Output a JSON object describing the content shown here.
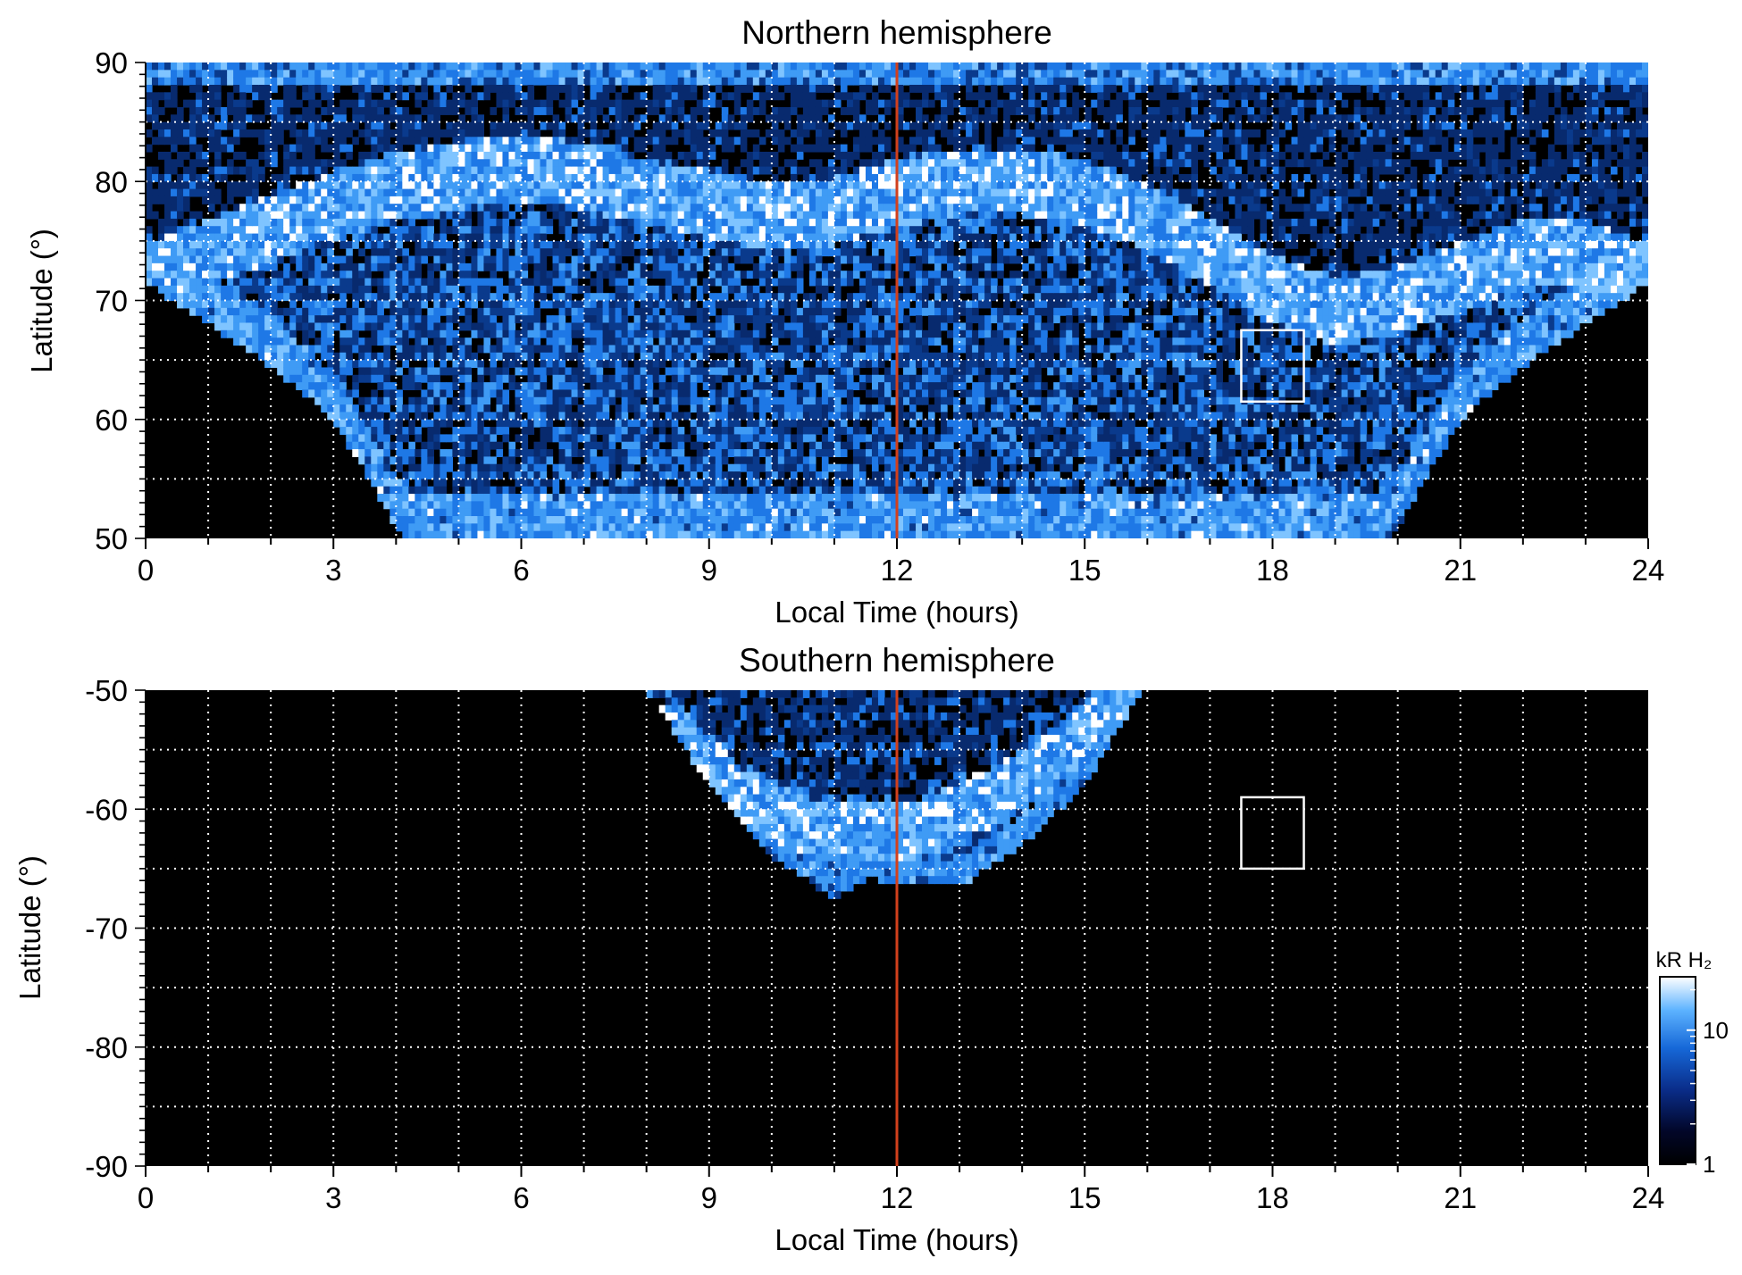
{
  "colors": {
    "background": "#000000",
    "aurora_dim": "#0a3a8c",
    "aurora_mid": "#1e78e6",
    "aurora_bright": "#7fc4ff",
    "aurora_peak": "#ffffff",
    "noon_line": "#d2401c",
    "grid": "#ffffff",
    "box": "#ffffff"
  },
  "chart_data": [
    {
      "type": "heatmap",
      "title": "Northern hemisphere",
      "xlabel": "Local Time (hours)",
      "ylabel": "Latitude (°)",
      "xlim": [
        0,
        24
      ],
      "ylim": [
        50,
        90
      ],
      "x_ticks": [
        "0",
        "3",
        "6",
        "9",
        "12",
        "15",
        "18",
        "21",
        "24"
      ],
      "y_ticks": [
        "50",
        "60",
        "70",
        "80",
        "90"
      ],
      "grid": true,
      "grid_x_step_hours": 1,
      "grid_y_step_deg": 5,
      "noon_line_x": 12,
      "box": {
        "x": [
          17.5,
          18.5
        ],
        "y": [
          61.5,
          67.5
        ]
      },
      "coverage_boundary": [
        [
          0,
          71.5
        ],
        [
          1,
          68
        ],
        [
          2,
          64.5
        ],
        [
          3,
          60
        ],
        [
          4,
          51
        ],
        [
          4.2,
          50
        ],
        [
          19.8,
          50
        ],
        [
          20,
          51
        ],
        [
          21,
          60
        ],
        [
          22,
          64.5
        ],
        [
          23,
          68
        ],
        [
          24,
          71.5
        ]
      ],
      "main_oval": [
        [
          0,
          72
        ],
        [
          1,
          74
        ],
        [
          2,
          76
        ],
        [
          3,
          78
        ],
        [
          4,
          79.5
        ],
        [
          5,
          80.5
        ],
        [
          6,
          81
        ],
        [
          7,
          80.5
        ],
        [
          8,
          79
        ],
        [
          9,
          78
        ],
        [
          10,
          77
        ],
        [
          11,
          77.5
        ],
        [
          12,
          79
        ],
        [
          13,
          80
        ],
        [
          14,
          80
        ],
        [
          15,
          79
        ],
        [
          16,
          77
        ],
        [
          17,
          74
        ],
        [
          18,
          71
        ],
        [
          19,
          69
        ],
        [
          20,
          70
        ],
        [
          21,
          72
        ],
        [
          22,
          74
        ],
        [
          23,
          74
        ],
        [
          24,
          72
        ]
      ]
    },
    {
      "type": "heatmap",
      "title": "Southern hemisphere",
      "xlabel": "Local Time (hours)",
      "ylabel": "Latitude (°)",
      "xlim": [
        0,
        24
      ],
      "ylim": [
        -90,
        -50
      ],
      "x_ticks": [
        "0",
        "3",
        "6",
        "9",
        "12",
        "15",
        "18",
        "21",
        "24"
      ],
      "y_ticks": [
        "-50",
        "-60",
        "-70",
        "-80",
        "-90"
      ],
      "grid": true,
      "grid_x_step_hours": 1,
      "grid_y_step_deg": 5,
      "noon_line_x": 12,
      "box": {
        "x": [
          17.5,
          18.5
        ],
        "y": [
          -65,
          -59
        ]
      },
      "coverage_boundary": [
        [
          8,
          -50
        ],
        [
          9,
          -58
        ],
        [
          10,
          -64
        ],
        [
          11,
          -67.5
        ],
        [
          11.5,
          -65.8
        ],
        [
          12.5,
          -66.5
        ],
        [
          13,
          -66.5
        ],
        [
          14,
          -63
        ],
        [
          15,
          -58
        ],
        [
          15.9,
          -50
        ]
      ],
      "main_oval": [
        [
          8.6,
          -54
        ],
        [
          9.5,
          -59
        ],
        [
          10.5,
          -61.5
        ],
        [
          11.5,
          -62
        ],
        [
          12.5,
          -61.5
        ],
        [
          13.5,
          -59
        ],
        [
          14.5,
          -56
        ],
        [
          15.3,
          -52
        ]
      ]
    }
  ],
  "colorbar": {
    "title": "kR H₂",
    "ticks": [
      {
        "value": 1,
        "label": "1"
      },
      {
        "value": 10,
        "label": "10"
      }
    ],
    "vmin": 1,
    "vmax": 25,
    "scale": "log"
  }
}
